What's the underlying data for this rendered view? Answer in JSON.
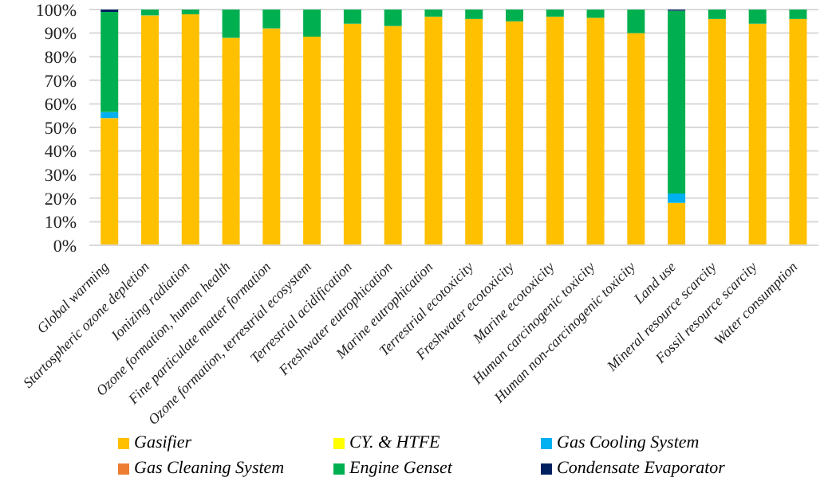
{
  "chart_data": {
    "type": "bar",
    "stacked": true,
    "categories": [
      "Global warming",
      "Startospheric ozone depletion",
      "Ionizing radiation",
      "Ozone formation, human health",
      "Fine particulate matter formation",
      "Ozone formation, terrestrial ecosystem",
      "Terrestrial acidification",
      "Freshwater eutrophication",
      "Marine eutrophication",
      "Terrestrial ecotoxicity",
      "Freshwater ecotoxicity",
      "Marine ecotoxicity",
      "Human carcinogenic toxicity",
      "Human non-carcinogenic toxicity",
      "Land use",
      "Mineral resource scarcity",
      "Fossil resource scarcity",
      "Water consumption"
    ],
    "series": [
      {
        "name": "Gasifier",
        "color": "#ffc000",
        "values": [
          54,
          97.5,
          98,
          88,
          92,
          88.5,
          94,
          93,
          97,
          96,
          95,
          97,
          96.5,
          90,
          18,
          96,
          94,
          96
        ]
      },
      {
        "name": "CY. & HTFE",
        "color": "#ffff00",
        "values": [
          0,
          0,
          0,
          0,
          0,
          0,
          0,
          0,
          0,
          0,
          0,
          0,
          0,
          0,
          0,
          0,
          0,
          0
        ]
      },
      {
        "name": "Gas Cooling System",
        "color": "#00b0f0",
        "values": [
          2.5,
          0,
          0,
          0,
          0,
          0,
          0,
          0,
          0,
          0,
          0,
          0,
          0,
          0,
          4,
          0,
          0,
          0
        ]
      },
      {
        "name": "Gas Cleaning System",
        "color": "#ed7d31",
        "values": [
          0,
          0,
          0,
          0,
          0,
          0,
          0,
          0,
          0,
          0,
          0,
          0,
          0,
          0,
          0,
          0,
          0,
          0
        ]
      },
      {
        "name": "Engine Genset",
        "color": "#00b050",
        "values": [
          42.5,
          2.5,
          2,
          12,
          8,
          11.5,
          6,
          7,
          3,
          4,
          5,
          3,
          3.5,
          10,
          77.5,
          4,
          6,
          4
        ]
      },
      {
        "name": "Condensate Evaporator",
        "color": "#002060",
        "values": [
          1,
          0,
          0,
          0,
          0,
          0,
          0,
          0,
          0,
          0,
          0,
          0,
          0,
          0,
          0.5,
          0,
          0,
          0
        ]
      }
    ],
    "ylim": [
      0,
      100
    ],
    "yticks": [
      {
        "value": 0,
        "label": "0%"
      },
      {
        "value": 10,
        "label": "10%"
      },
      {
        "value": 20,
        "label": "20%"
      },
      {
        "value": 30,
        "label": "30%"
      },
      {
        "value": 40,
        "label": "40%"
      },
      {
        "value": 50,
        "label": "50%"
      },
      {
        "value": 60,
        "label": "60%"
      },
      {
        "value": 70,
        "label": "70%"
      },
      {
        "value": 80,
        "label": "80%"
      },
      {
        "value": 90,
        "label": "90%"
      },
      {
        "value": 100,
        "label": "100%"
      }
    ],
    "grid": "y",
    "legend": "bottom"
  }
}
